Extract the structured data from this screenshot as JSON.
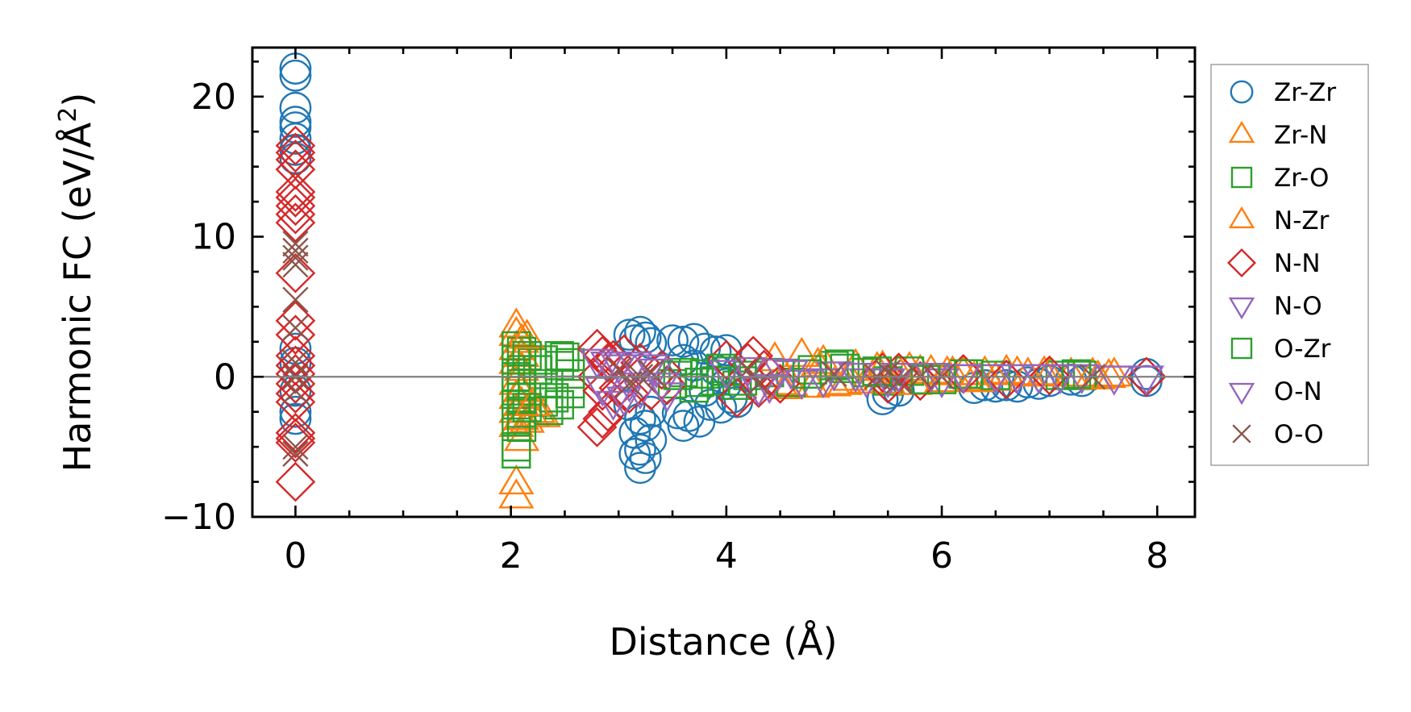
{
  "chart_data": {
    "type": "scatter",
    "xlabel": "Distance (Å)",
    "ylabel": "Harmonic FC (eV/Å",
    "ylabel_sup": "2",
    "ylabel_close": ")",
    "xlim": [
      -0.4,
      8.35
    ],
    "ylim": [
      -10,
      23.5
    ],
    "xticks": [
      0,
      2,
      4,
      6,
      8
    ],
    "xtick_labels": [
      "0",
      "2",
      "4",
      "6",
      "8"
    ],
    "yticks": [
      -10,
      0,
      10,
      20
    ],
    "ytick_labels": [
      "−10",
      "0",
      "10",
      "20"
    ],
    "reference_line_y": 0,
    "legend_position": "outside-right",
    "series": [
      {
        "name": "Zr-Zr",
        "marker": "circle",
        "color": "#1f77b4",
        "points": [
          [
            0,
            22
          ],
          [
            0,
            21.5
          ],
          [
            0,
            19.2
          ],
          [
            0,
            18.2
          ],
          [
            0,
            17.8
          ],
          [
            0,
            17
          ],
          [
            0,
            16.2
          ],
          [
            0,
            15.6
          ],
          [
            0,
            2
          ],
          [
            0,
            1
          ],
          [
            0,
            -1
          ],
          [
            0,
            -2.5
          ],
          [
            0,
            -3
          ],
          [
            3.1,
            3
          ],
          [
            3.2,
            3.2
          ],
          [
            3.25,
            2.8
          ],
          [
            3.3,
            2.4
          ],
          [
            3.15,
            2.6
          ],
          [
            3.2,
            -3
          ],
          [
            3.25,
            -3.5
          ],
          [
            3.15,
            -4
          ],
          [
            3.3,
            -4.5
          ],
          [
            3.2,
            -5.2
          ],
          [
            3.15,
            -5.5
          ],
          [
            3.25,
            -5.8
          ],
          [
            3.2,
            -6.5
          ],
          [
            3.3,
            -2.5
          ],
          [
            3.1,
            -2
          ],
          [
            3.5,
            2.6
          ],
          [
            3.6,
            2.5
          ],
          [
            3.7,
            2.7
          ],
          [
            3.55,
            -2.6
          ],
          [
            3.65,
            -2.8
          ],
          [
            3.75,
            -3.2
          ],
          [
            3.6,
            -3.5
          ],
          [
            3.8,
            2
          ],
          [
            3.9,
            1.8
          ],
          [
            4.0,
            1.9
          ],
          [
            3.85,
            -2
          ],
          [
            3.95,
            -2.2
          ],
          [
            4.05,
            -1.5
          ],
          [
            4.1,
            -1.8
          ],
          [
            3.6,
            1.2
          ],
          [
            3.7,
            0.8
          ],
          [
            3.8,
            -1
          ],
          [
            3.9,
            0.5
          ],
          [
            4.0,
            -0.5
          ],
          [
            5.45,
            -1.6
          ],
          [
            5.5,
            -1.2
          ],
          [
            5.6,
            -1
          ],
          [
            6.3,
            -0.8
          ],
          [
            6.4,
            -0.6
          ],
          [
            6.5,
            -0.7
          ],
          [
            6.6,
            -0.6
          ],
          [
            6.7,
            -0.7
          ],
          [
            6.8,
            -0.4
          ],
          [
            6.9,
            -0.5
          ],
          [
            7.0,
            -0.3
          ],
          [
            7.2,
            -0.2
          ],
          [
            7.3,
            -0.3
          ],
          [
            7.9,
            -0.3
          ],
          [
            7.9,
            0.2
          ]
        ]
      },
      {
        "name": "Zr-N",
        "marker": "triangle-up",
        "color": "#ff7f0e",
        "points": [
          [
            2.05,
            3.6
          ],
          [
            2.05,
            3
          ],
          [
            2.1,
            2.5
          ],
          [
            2.05,
            2
          ],
          [
            2.1,
            1.5
          ],
          [
            2.05,
            1
          ],
          [
            2.1,
            0.5
          ],
          [
            2.05,
            -0.5
          ],
          [
            2.1,
            -1
          ],
          [
            2.05,
            -1.5
          ],
          [
            2.1,
            -2
          ],
          [
            2.05,
            -2.5
          ],
          [
            2.1,
            -3
          ],
          [
            2.15,
            -3.2
          ],
          [
            2.05,
            -3.5
          ],
          [
            2.1,
            -4.5
          ],
          [
            2.05,
            -7.6
          ],
          [
            2.05,
            -8.6
          ],
          [
            2.2,
            -2.8
          ],
          [
            2.25,
            -2.5
          ],
          [
            2.3,
            -2.8
          ],
          [
            4.5,
            -0.5
          ],
          [
            4.6,
            -0.6
          ],
          [
            4.7,
            1.5
          ],
          [
            4.8,
            -0.7
          ],
          [
            4.9,
            1
          ],
          [
            5.0,
            -0.6
          ],
          [
            5.1,
            -0.5
          ],
          [
            5.2,
            0.7
          ],
          [
            5.3,
            -0.4
          ],
          [
            5.4,
            0.5
          ],
          [
            5.5,
            -0.4
          ],
          [
            5.6,
            0.3
          ],
          [
            5.7,
            0.5
          ],
          [
            5.8,
            0.3
          ],
          [
            5.9,
            0.3
          ],
          [
            6.0,
            -0.3
          ],
          [
            6.1,
            0.2
          ],
          [
            6.2,
            0.2
          ],
          [
            6.3,
            -0.2
          ],
          [
            6.4,
            0.2
          ],
          [
            6.5,
            -0.2
          ],
          [
            6.6,
            0.3
          ],
          [
            6.7,
            0.2
          ],
          [
            6.8,
            0.1
          ],
          [
            7.0,
            0.1
          ],
          [
            7.2,
            0.1
          ],
          [
            7.4,
            0.1
          ],
          [
            7.55,
            0.0
          ],
          [
            7.6,
            0.1
          ]
        ]
      },
      {
        "name": "Zr-O",
        "marker": "square",
        "color": "#2ca02c",
        "points": [
          [
            2.05,
            2.2
          ],
          [
            2.1,
            1.8
          ],
          [
            2.05,
            1.2
          ],
          [
            2.1,
            0.5
          ],
          [
            2.05,
            0
          ],
          [
            2.1,
            -0.5
          ],
          [
            2.05,
            -1
          ],
          [
            2.1,
            -1.5
          ],
          [
            2.05,
            -2
          ],
          [
            2.1,
            -2.6
          ],
          [
            2.05,
            -3.2
          ],
          [
            2.1,
            -3.6
          ],
          [
            2.05,
            -5.5
          ],
          [
            2.05,
            -5
          ],
          [
            2.2,
            1
          ],
          [
            2.2,
            -1
          ],
          [
            2.3,
            1.2
          ],
          [
            2.3,
            -1.8
          ],
          [
            2.35,
            -2.4
          ],
          [
            2.45,
            1.5
          ],
          [
            2.5,
            1.4
          ],
          [
            2.55,
            1
          ],
          [
            2.55,
            -0.5
          ],
          [
            2.55,
            -1.2
          ],
          [
            2.4,
            -1.5
          ],
          [
            2.45,
            -2
          ],
          [
            3.5,
            -0.5
          ],
          [
            3.6,
            0.3
          ],
          [
            3.7,
            -0.8
          ],
          [
            3.8,
            0.2
          ],
          [
            3.9,
            -0.3
          ],
          [
            4.0,
            0.4
          ],
          [
            4.1,
            -0.6
          ],
          [
            4.2,
            0.1
          ],
          [
            4.4,
            0.3
          ],
          [
            4.6,
            -0.4
          ],
          [
            4.8,
            0.5
          ],
          [
            5.0,
            0.8
          ],
          [
            5.1,
            0.6
          ],
          [
            5.3,
            0.3
          ],
          [
            5.5,
            -0.3
          ],
          [
            5.7,
            0.4
          ],
          [
            6.0,
            -0.2
          ],
          [
            6.2,
            0.2
          ],
          [
            6.5,
            0.1
          ],
          [
            7.1,
            0.1
          ],
          [
            7.3,
            0.1
          ]
        ]
      },
      {
        "name": "N-Zr",
        "marker": "triangle-up",
        "color": "#ff7f0e",
        "points": [
          [
            2.15,
            2.8
          ],
          [
            2.2,
            -2
          ],
          [
            4.45,
            1.2
          ],
          [
            4.55,
            -0.8
          ],
          [
            4.85,
            0.8
          ],
          [
            5.15,
            -0.2
          ],
          [
            5.45,
            0.6
          ],
          [
            5.75,
            -0.5
          ],
          [
            6.05,
            0.2
          ],
          [
            6.35,
            -0.3
          ],
          [
            6.95,
            0.2
          ],
          [
            7.45,
            -0.1
          ]
        ]
      },
      {
        "name": "N-N",
        "marker": "diamond",
        "color": "#d62728",
        "points": [
          [
            0,
            16.5
          ],
          [
            0,
            16
          ],
          [
            0,
            15.5
          ],
          [
            0,
            14.8
          ],
          [
            0,
            13.2
          ],
          [
            0,
            12.8
          ],
          [
            0,
            12.2
          ],
          [
            0,
            11.6
          ],
          [
            0,
            11
          ],
          [
            0,
            7.4
          ],
          [
            0,
            4
          ],
          [
            0,
            3
          ],
          [
            0,
            1.5
          ],
          [
            0,
            0.8
          ],
          [
            0,
            0.2
          ],
          [
            0,
            -0.5
          ],
          [
            0,
            -1.2
          ],
          [
            0,
            -1.8
          ],
          [
            0,
            -4
          ],
          [
            0,
            -4.4
          ],
          [
            0,
            -4.7
          ],
          [
            0,
            -7.5
          ],
          [
            2.8,
            2
          ],
          [
            2.85,
            1.5
          ],
          [
            2.9,
            1
          ],
          [
            2.8,
            0
          ],
          [
            2.85,
            -1
          ],
          [
            2.9,
            -2.5
          ],
          [
            2.85,
            -3
          ],
          [
            2.8,
            -3.6
          ],
          [
            2.95,
            1.2
          ],
          [
            3.0,
            -0.8
          ],
          [
            3.05,
            1.6
          ],
          [
            3.1,
            -1.2
          ],
          [
            3.2,
            1
          ],
          [
            3.3,
            -1
          ],
          [
            3.4,
            0.5
          ],
          [
            3.45,
            -0.6
          ],
          [
            4.0,
            1.2
          ],
          [
            4.1,
            -1.5
          ],
          [
            4.2,
            1
          ],
          [
            4.25,
            1.5
          ],
          [
            4.3,
            -0.8
          ],
          [
            4.35,
            0.5
          ],
          [
            4.5,
            -0.5
          ],
          [
            5.45,
            0.3
          ],
          [
            5.5,
            -0.5
          ],
          [
            5.6,
            0.3
          ],
          [
            5.8,
            -0.3
          ],
          [
            6.2,
            0.2
          ],
          [
            6.6,
            -0.2
          ],
          [
            7.0,
            0.1
          ],
          [
            7.9,
            0
          ]
        ]
      },
      {
        "name": "N-O",
        "marker": "triangle-down",
        "color": "#9467bd",
        "points": [
          [
            2.8,
            1.2
          ],
          [
            2.85,
            -0.8
          ],
          [
            3.0,
            0.8
          ],
          [
            3.05,
            -1.5
          ],
          [
            3.15,
            1
          ],
          [
            3.2,
            -1
          ],
          [
            3.35,
            0.5
          ],
          [
            3.4,
            -0.5
          ],
          [
            4.2,
            0.6
          ],
          [
            4.3,
            -0.8
          ],
          [
            4.5,
            0.5
          ],
          [
            4.7,
            -0.3
          ],
          [
            5.0,
            0.3
          ],
          [
            5.3,
            -0.2
          ],
          [
            5.6,
            0.2
          ],
          [
            6.0,
            -0.2
          ],
          [
            6.5,
            0.1
          ],
          [
            6.9,
            0.1
          ],
          [
            7.3,
            0.1
          ],
          [
            7.9,
            0
          ]
        ]
      },
      {
        "name": "O-Zr",
        "marker": "square",
        "color": "#2ca02c",
        "points": [
          [
            2.15,
            1.5
          ],
          [
            2.15,
            -2.2
          ],
          [
            2.25,
            0.5
          ],
          [
            2.35,
            -0.5
          ],
          [
            2.45,
            0.8
          ],
          [
            2.55,
            0.2
          ],
          [
            3.55,
            0.1
          ],
          [
            3.75,
            -0.4
          ],
          [
            3.95,
            0.6
          ],
          [
            4.15,
            -0.3
          ],
          [
            4.75,
            0.2
          ],
          [
            5.05,
            0.9
          ],
          [
            5.4,
            0.4
          ],
          [
            5.85,
            -0.2
          ],
          [
            6.25,
            0.2
          ],
          [
            7.25,
            0.2
          ]
        ]
      },
      {
        "name": "O-N",
        "marker": "triangle-down",
        "color": "#9467bd",
        "points": [
          [
            2.9,
            1
          ],
          [
            2.95,
            -1.8
          ],
          [
            3.1,
            -0.5
          ],
          [
            3.3,
            0.8
          ],
          [
            3.45,
            -1.2
          ],
          [
            4.0,
            0.4
          ],
          [
            4.4,
            -0.6
          ],
          [
            4.6,
            0.4
          ],
          [
            4.9,
            -0.2
          ],
          [
            5.2,
            0.2
          ],
          [
            5.5,
            -0.2
          ],
          [
            5.9,
            0.2
          ],
          [
            6.2,
            0.1
          ],
          [
            6.7,
            0.1
          ],
          [
            7.1,
            0.1
          ],
          [
            7.6,
            0.0
          ]
        ]
      },
      {
        "name": "O-O",
        "marker": "x",
        "color": "#8c564b",
        "points": [
          [
            0,
            9.5
          ],
          [
            0,
            9
          ],
          [
            0,
            8.5
          ],
          [
            0,
            8
          ],
          [
            0,
            5.5
          ],
          [
            0,
            3.5
          ],
          [
            0,
            1
          ],
          [
            0,
            0
          ],
          [
            0,
            -1
          ],
          [
            0,
            -5
          ],
          [
            0,
            -5.5
          ],
          [
            3.0,
            0.5
          ],
          [
            3.1,
            -0.5
          ],
          [
            3.2,
            0
          ],
          [
            3.3,
            0.3
          ],
          [
            4.2,
            0.5
          ],
          [
            4.3,
            -0.5
          ],
          [
            5.0,
            0.2
          ],
          [
            5.4,
            0
          ],
          [
            5.5,
            0.3
          ],
          [
            5.6,
            -0.3
          ],
          [
            5.8,
            0
          ],
          [
            6.0,
            0
          ],
          [
            7.4,
            0
          ]
        ]
      }
    ]
  }
}
